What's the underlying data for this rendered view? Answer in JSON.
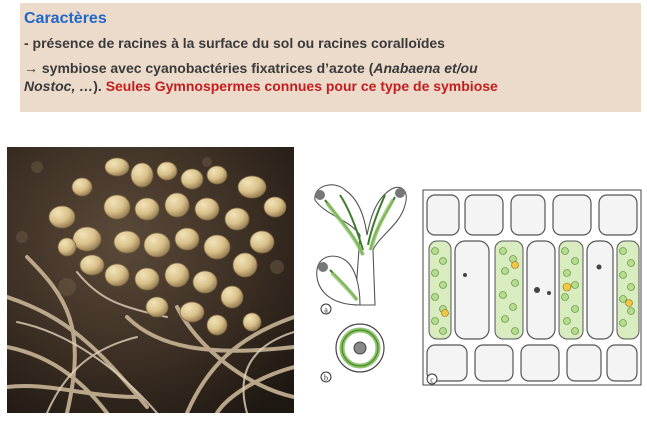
{
  "heading": "Caractères",
  "line1": "- présence de racines à la surface du sol ou racines coralloïdes",
  "line2": {
    "arrow": "→",
    "part1": " symbiose avec  cyanobactéries fixatrices d’azote (",
    "italic1": "Anabaena et/ou",
    "italic2": "Nostoc, …",
    "part2": "). ",
    "highlight": "Seules Gymnospermes connues pour ce type de symbiose"
  },
  "diagram_labels": {
    "a": "a",
    "b": "b",
    "c": "c"
  },
  "colors": {
    "title_blue": "#1f68c8",
    "highlight_red": "#c41d1d",
    "box_background": "#ecdacb",
    "cyanobacteria_green": "#8fc56a"
  }
}
